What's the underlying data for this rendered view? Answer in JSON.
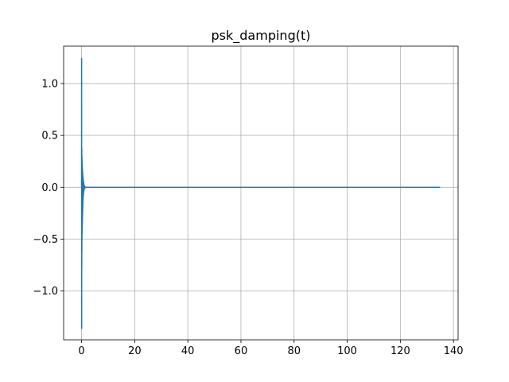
{
  "chart_data": {
    "type": "line",
    "title": "psk_damping(t)",
    "xlabel": "",
    "ylabel": "",
    "xlim": [
      -6.75,
      141.75
    ],
    "ylim": [
      -1.47,
      1.36
    ],
    "x_ticks": [
      0,
      20,
      40,
      60,
      80,
      100,
      120,
      140
    ],
    "x_tick_labels": [
      "0",
      "20",
      "40",
      "60",
      "80",
      "100",
      "120",
      "140"
    ],
    "y_ticks": [
      -1.0,
      -0.5,
      0.0,
      0.5,
      1.0
    ],
    "y_tick_labels": [
      "−1.0",
      "−0.5",
      "0.0",
      "0.5",
      "1.0"
    ],
    "grid": true,
    "legend": "none",
    "series": [
      {
        "color": "#1f77b4",
        "x": [
          0.0,
          0.02,
          0.04,
          0.06,
          0.08,
          0.1,
          0.12,
          0.14,
          0.16,
          0.18,
          0.2,
          0.22,
          0.24,
          0.26,
          0.28,
          0.3,
          0.32,
          0.34,
          0.36,
          0.38,
          0.4,
          0.42,
          0.44,
          0.46,
          0.48,
          0.5,
          0.52,
          0.54,
          0.56,
          0.58,
          0.6,
          0.62,
          0.64,
          0.66,
          0.68,
          0.7,
          0.72,
          0.74,
          0.76,
          0.78,
          0.8,
          0.82,
          0.84,
          0.86,
          0.88,
          0.9,
          0.92,
          0.94,
          0.96,
          0.98,
          1.0,
          1.05,
          1.1,
          1.15,
          1.2,
          1.3,
          1.5,
          2.0,
          3.0,
          5.0,
          10.0,
          20.0,
          40.0,
          60.0,
          80.0,
          100.0,
          120.0,
          135.0
        ],
        "y": [
          0.0,
          1.24,
          -1.36,
          0.38,
          -0.79,
          0.36,
          -0.62,
          0.3,
          -0.5,
          0.27,
          -0.45,
          0.24,
          -0.4,
          0.22,
          -0.36,
          0.2,
          -0.33,
          0.18,
          -0.3,
          0.16,
          -0.26,
          0.14,
          -0.22,
          0.12,
          -0.18,
          0.11,
          -0.15,
          0.1,
          -0.13,
          0.09,
          -0.11,
          0.08,
          -0.09,
          0.07,
          -0.08,
          0.06,
          -0.07,
          0.05,
          -0.06,
          0.045,
          -0.05,
          0.04,
          -0.04,
          0.035,
          -0.035,
          0.03,
          -0.03,
          0.025,
          -0.025,
          0.02,
          -0.02,
          0.015,
          -0.012,
          0.01,
          -0.008,
          0.005,
          -0.003,
          0.001,
          0.0,
          0.0,
          0.0,
          0.0,
          0.0,
          0.0,
          0.0,
          0.0,
          0.0,
          0.0
        ]
      }
    ]
  }
}
